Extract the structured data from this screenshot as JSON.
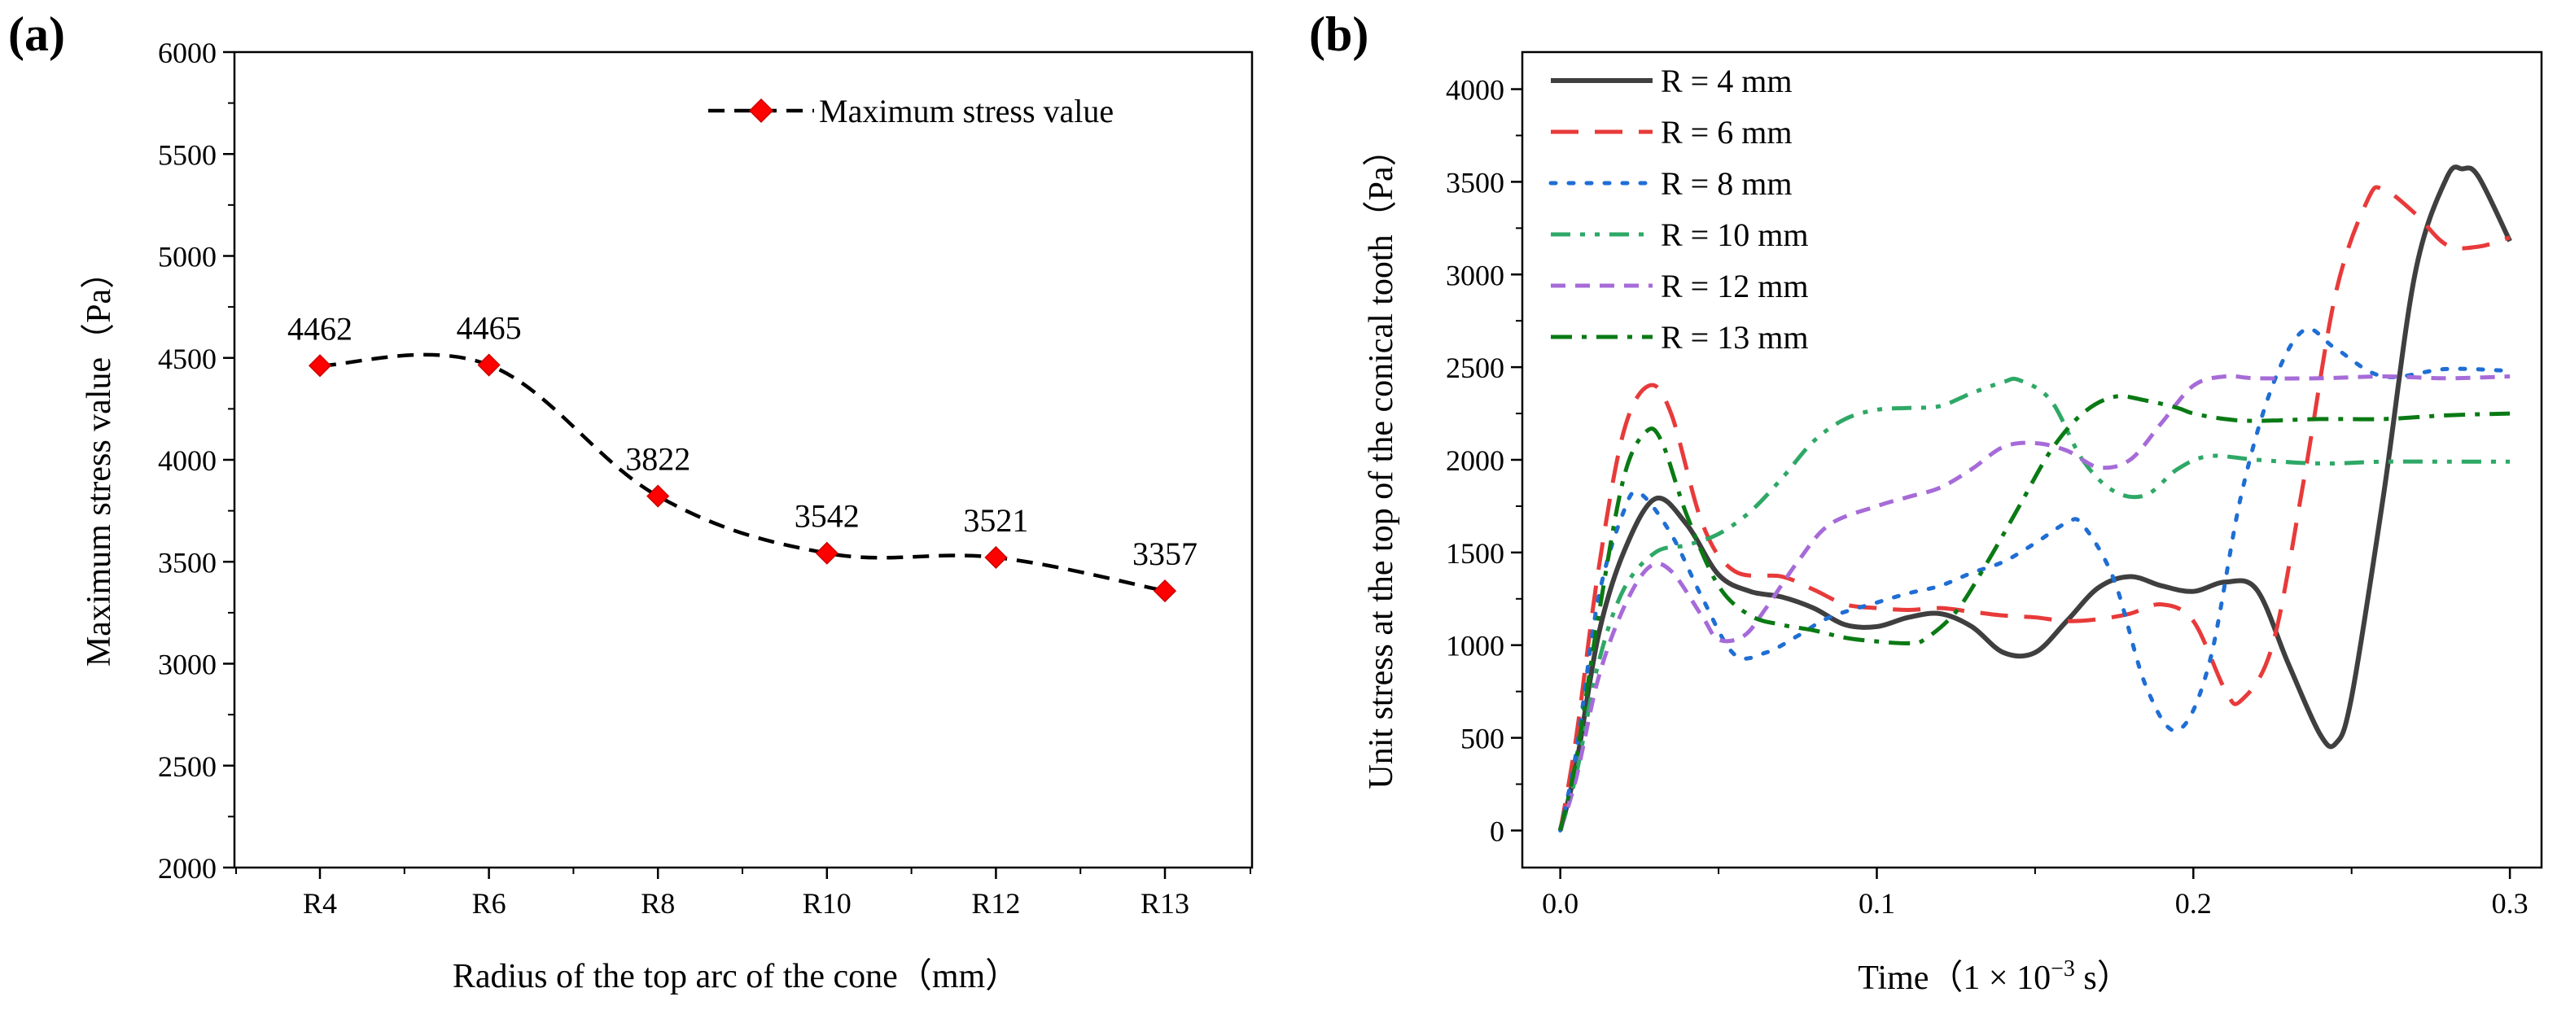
{
  "chart_data": [
    {
      "panel_label": "(a)",
      "type": "line",
      "categories": [
        "R4",
        "R6",
        "R8",
        "R10",
        "R12",
        "R13"
      ],
      "series": [
        {
          "name": "Maximum stress value",
          "values": [
            4462,
            4465,
            3822,
            3542,
            3521,
            3357
          ],
          "data_labels": [
            "4462",
            "4465",
            "3822",
            "3542",
            "3521",
            "3357"
          ],
          "color": "#ff0000",
          "line_color": "#000000",
          "line_style": "dashed",
          "marker": "diamond"
        }
      ],
      "ylim": [
        2000,
        6000
      ],
      "yticks": [
        "2000",
        "2500",
        "3000",
        "3500",
        "4000",
        "4500",
        "5000",
        "5500",
        "6000"
      ],
      "ytick_values": [
        2000,
        2500,
        3000,
        3500,
        4000,
        4500,
        5000,
        5500,
        6000
      ],
      "xlabel": "Radius of the top arc of the cone（mm）",
      "ylabel": "Maximum stress value（Pa）",
      "legend_position": "top-right",
      "grid": false
    },
    {
      "panel_label": "(b)",
      "type": "line",
      "xlim": [
        -0.012,
        0.31
      ],
      "ylim": [
        -200,
        4200
      ],
      "xticks": [
        "0.0",
        "0.1",
        "0.2",
        "0.3"
      ],
      "xtick_values": [
        0.0,
        0.1,
        0.2,
        0.3
      ],
      "yticks": [
        "0",
        "500",
        "1000",
        "1500",
        "2000",
        "2500",
        "3000",
        "3500",
        "4000"
      ],
      "ytick_values": [
        0,
        500,
        1000,
        1500,
        2000,
        2500,
        3000,
        3500,
        4000
      ],
      "xlabel": "Time（1 × 10",
      "xlabel_exponent": "−3",
      "xlabel_unit": " s）",
      "ylabel": "Unit stress at the top of the conical tooth（Pa）",
      "legend_position": "top-left",
      "grid": false,
      "series": [
        {
          "name": "R = 4 mm",
          "color": "#3f3f3f",
          "dash": "solid",
          "points": [
            [
              0,
              0
            ],
            [
              0.005,
              350
            ],
            [
              0.012,
              1050
            ],
            [
              0.02,
              1500
            ],
            [
              0.03,
              1790
            ],
            [
              0.04,
              1650
            ],
            [
              0.05,
              1380
            ],
            [
              0.06,
              1290
            ],
            [
              0.07,
              1260
            ],
            [
              0.08,
              1200
            ],
            [
              0.09,
              1110
            ],
            [
              0.1,
              1100
            ],
            [
              0.11,
              1150
            ],
            [
              0.12,
              1170
            ],
            [
              0.13,
              1100
            ],
            [
              0.14,
              960
            ],
            [
              0.15,
              960
            ],
            [
              0.16,
              1130
            ],
            [
              0.17,
              1310
            ],
            [
              0.18,
              1370
            ],
            [
              0.19,
              1320
            ],
            [
              0.2,
              1290
            ],
            [
              0.21,
              1340
            ],
            [
              0.22,
              1300
            ],
            [
              0.23,
              900
            ],
            [
              0.24,
              520
            ],
            [
              0.245,
              470
            ],
            [
              0.25,
              720
            ],
            [
              0.26,
              1800
            ],
            [
              0.27,
              3000
            ],
            [
              0.28,
              3520
            ],
            [
              0.285,
              3570
            ],
            [
              0.29,
              3530
            ],
            [
              0.3,
              3180
            ]
          ]
        },
        {
          "name": "R = 6 mm",
          "color": "#e83a3a",
          "dash": "dashed",
          "points": [
            [
              0,
              0
            ],
            [
              0.005,
              500
            ],
            [
              0.012,
              1400
            ],
            [
              0.02,
              2150
            ],
            [
              0.028,
              2400
            ],
            [
              0.035,
              2250
            ],
            [
              0.045,
              1650
            ],
            [
              0.055,
              1400
            ],
            [
              0.07,
              1370
            ],
            [
              0.08,
              1300
            ],
            [
              0.09,
              1220
            ],
            [
              0.1,
              1200
            ],
            [
              0.11,
              1190
            ],
            [
              0.12,
              1200
            ],
            [
              0.13,
              1180
            ],
            [
              0.14,
              1160
            ],
            [
              0.15,
              1150
            ],
            [
              0.16,
              1130
            ],
            [
              0.17,
              1140
            ],
            [
              0.18,
              1170
            ],
            [
              0.19,
              1220
            ],
            [
              0.2,
              1130
            ],
            [
              0.21,
              760
            ],
            [
              0.215,
              700
            ],
            [
              0.225,
              1000
            ],
            [
              0.235,
              1900
            ],
            [
              0.245,
              2900
            ],
            [
              0.255,
              3400
            ],
            [
              0.26,
              3460
            ],
            [
              0.27,
              3330
            ],
            [
              0.28,
              3160
            ],
            [
              0.29,
              3150
            ],
            [
              0.3,
              3200
            ]
          ]
        },
        {
          "name": "R = 8 mm",
          "color": "#1f6ed4",
          "dash": "dotted",
          "points": [
            [
              0,
              0
            ],
            [
              0.005,
              420
            ],
            [
              0.012,
              1250
            ],
            [
              0.02,
              1720
            ],
            [
              0.025,
              1820
            ],
            [
              0.035,
              1600
            ],
            [
              0.045,
              1250
            ],
            [
              0.055,
              950
            ],
            [
              0.065,
              960
            ],
            [
              0.075,
              1050
            ],
            [
              0.085,
              1150
            ],
            [
              0.1,
              1230
            ],
            [
              0.11,
              1280
            ],
            [
              0.12,
              1320
            ],
            [
              0.13,
              1390
            ],
            [
              0.14,
              1450
            ],
            [
              0.15,
              1550
            ],
            [
              0.16,
              1660
            ],
            [
              0.165,
              1650
            ],
            [
              0.175,
              1350
            ],
            [
              0.185,
              780
            ],
            [
              0.195,
              540
            ],
            [
              0.205,
              900
            ],
            [
              0.215,
              1800
            ],
            [
              0.225,
              2400
            ],
            [
              0.235,
              2700
            ],
            [
              0.245,
              2600
            ],
            [
              0.26,
              2450
            ],
            [
              0.28,
              2490
            ],
            [
              0.3,
              2480
            ]
          ]
        },
        {
          "name": "R = 10 mm",
          "color": "#2ea866",
          "dash": "dashdotdot",
          "points": [
            [
              0,
              0
            ],
            [
              0.005,
              300
            ],
            [
              0.012,
              900
            ],
            [
              0.02,
              1300
            ],
            [
              0.03,
              1500
            ],
            [
              0.04,
              1540
            ],
            [
              0.05,
              1600
            ],
            [
              0.06,
              1720
            ],
            [
              0.07,
              1900
            ],
            [
              0.08,
              2100
            ],
            [
              0.09,
              2220
            ],
            [
              0.1,
              2270
            ],
            [
              0.11,
              2280
            ],
            [
              0.12,
              2290
            ],
            [
              0.13,
              2360
            ],
            [
              0.14,
              2420
            ],
            [
              0.145,
              2430
            ],
            [
              0.155,
              2320
            ],
            [
              0.165,
              2000
            ],
            [
              0.175,
              1830
            ],
            [
              0.185,
              1810
            ],
            [
              0.195,
              1950
            ],
            [
              0.205,
              2020
            ],
            [
              0.22,
              2000
            ],
            [
              0.24,
              1980
            ],
            [
              0.26,
              1990
            ],
            [
              0.28,
              1990
            ],
            [
              0.3,
              1990
            ]
          ]
        },
        {
          "name": "R = 12 mm",
          "color": "#a66bd8",
          "dash": "shortdash",
          "points": [
            [
              0,
              0
            ],
            [
              0.005,
              280
            ],
            [
              0.012,
              820
            ],
            [
              0.02,
              1200
            ],
            [
              0.028,
              1420
            ],
            [
              0.035,
              1400
            ],
            [
              0.045,
              1150
            ],
            [
              0.05,
              1030
            ],
            [
              0.058,
              1050
            ],
            [
              0.065,
              1200
            ],
            [
              0.075,
              1450
            ],
            [
              0.085,
              1650
            ],
            [
              0.1,
              1750
            ],
            [
              0.11,
              1800
            ],
            [
              0.12,
              1850
            ],
            [
              0.13,
              1950
            ],
            [
              0.14,
              2070
            ],
            [
              0.15,
              2090
            ],
            [
              0.16,
              2050
            ],
            [
              0.17,
              1960
            ],
            [
              0.18,
              2000
            ],
            [
              0.19,
              2200
            ],
            [
              0.2,
              2400
            ],
            [
              0.21,
              2450
            ],
            [
              0.22,
              2440
            ],
            [
              0.24,
              2440
            ],
            [
              0.26,
              2450
            ],
            [
              0.28,
              2440
            ],
            [
              0.3,
              2450
            ]
          ]
        },
        {
          "name": "R = 13 mm",
          "color": "#0a7a14",
          "dash": "dashdot",
          "points": [
            [
              0,
              0
            ],
            [
              0.005,
              380
            ],
            [
              0.012,
              1150
            ],
            [
              0.02,
              1900
            ],
            [
              0.027,
              2150
            ],
            [
              0.032,
              2100
            ],
            [
              0.04,
              1700
            ],
            [
              0.05,
              1320
            ],
            [
              0.06,
              1160
            ],
            [
              0.07,
              1110
            ],
            [
              0.08,
              1080
            ],
            [
              0.09,
              1040
            ],
            [
              0.1,
              1020
            ],
            [
              0.11,
              1010
            ],
            [
              0.115,
              1030
            ],
            [
              0.125,
              1180
            ],
            [
              0.135,
              1450
            ],
            [
              0.145,
              1750
            ],
            [
              0.155,
              2050
            ],
            [
              0.165,
              2250
            ],
            [
              0.175,
              2340
            ],
            [
              0.185,
              2320
            ],
            [
              0.195,
              2280
            ],
            [
              0.2,
              2250
            ],
            [
              0.21,
              2220
            ],
            [
              0.22,
              2210
            ],
            [
              0.24,
              2220
            ],
            [
              0.26,
              2220
            ],
            [
              0.28,
              2240
            ],
            [
              0.3,
              2250
            ]
          ]
        }
      ]
    }
  ]
}
